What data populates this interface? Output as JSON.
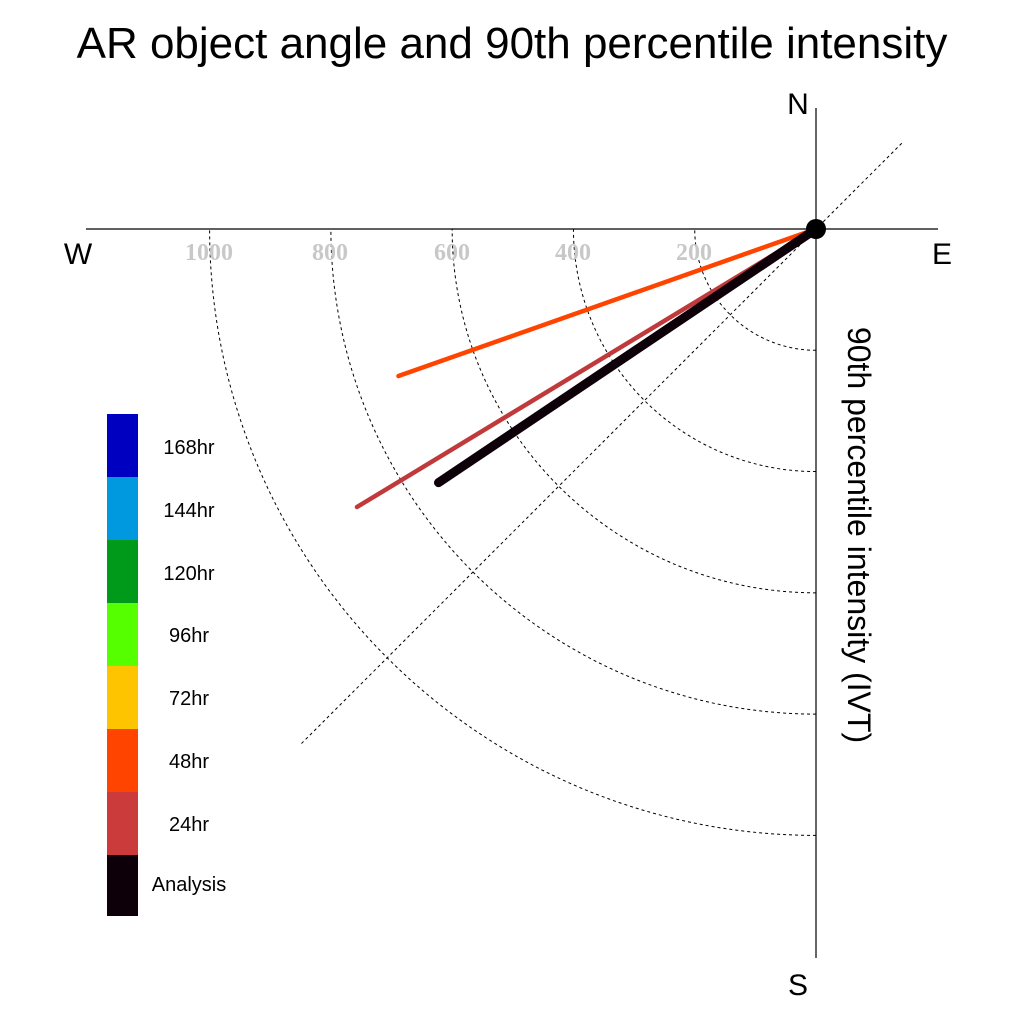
{
  "chart_data": {
    "type": "polar-vector",
    "title": "AR object angle and 90th percentile intensity",
    "ylabel": "90th percentile intensity (IVT)",
    "compass": {
      "north": "N",
      "east": "E",
      "south": "S",
      "west": "W"
    },
    "radial_ticks": [
      "1000",
      "800",
      "600",
      "400",
      "200"
    ],
    "radial_circles": [
      200,
      400,
      600,
      800,
      1000
    ],
    "r_max": 1200,
    "legend": [
      {
        "label": "168hr",
        "color": "#0000c0"
      },
      {
        "label": "144hr",
        "color": "#0099e0"
      },
      {
        "label": "120hr",
        "color": "#009a1a"
      },
      {
        "label": "96hr",
        "color": "#55ff00"
      },
      {
        "label": "72hr",
        "color": "#ffc400"
      },
      {
        "label": "48hr",
        "color": "#ff4400"
      },
      {
        "label": "24hr",
        "color": "#cc3b3b"
      },
      {
        "label": "Analysis",
        "color": "#0d0008"
      }
    ],
    "series": [
      {
        "name": "48hr",
        "color": "#ff4400",
        "angle_deg": 250.6,
        "intensity": 730,
        "line": "thin"
      },
      {
        "name": "24hr",
        "color": "#c0393b",
        "angle_deg": 238.8,
        "intensity": 885,
        "line": "thin"
      },
      {
        "name": "Analysis",
        "color": "#0d0008",
        "angle_deg": 236.1,
        "intensity": 750,
        "line": "thick"
      }
    ]
  }
}
